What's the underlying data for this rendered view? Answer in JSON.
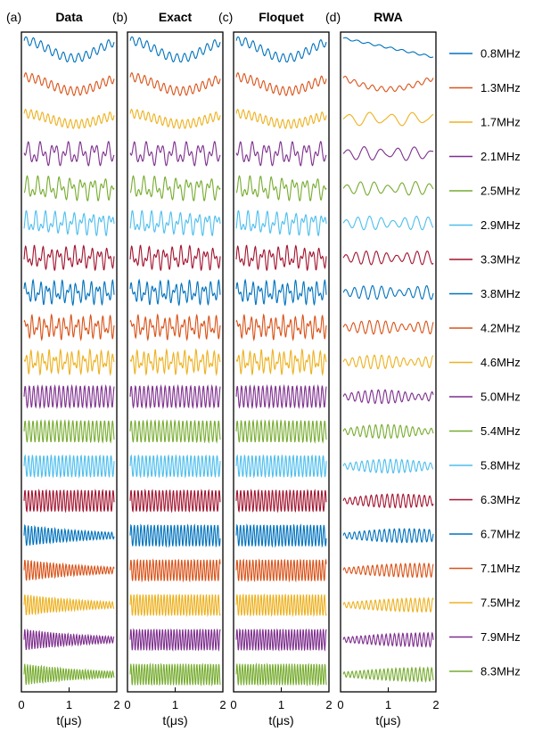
{
  "chart_data": {
    "type": "line",
    "xlabel": "t(μs)",
    "x_ticks": [
      "0",
      "1",
      "2"
    ],
    "xlim": [
      0,
      2
    ],
    "panels": [
      {
        "label": "(a)",
        "title": "Data"
      },
      {
        "label": "(b)",
        "title": "Exact"
      },
      {
        "label": "(c)",
        "title": "Floquet"
      },
      {
        "label": "(d)",
        "title": "RWA"
      }
    ],
    "series": [
      {
        "name": "0.8MHz",
        "color": "#0072BD"
      },
      {
        "name": "1.3MHz",
        "color": "#D95319"
      },
      {
        "name": "1.7MHz",
        "color": "#EDB120"
      },
      {
        "name": "2.1MHz",
        "color": "#7E2F8E"
      },
      {
        "name": "2.5MHz",
        "color": "#77AC30"
      },
      {
        "name": "2.9MHz",
        "color": "#4DBEEE"
      },
      {
        "name": "3.3MHz",
        "color": "#A2142F"
      },
      {
        "name": "3.8MHz",
        "color": "#0072BD"
      },
      {
        "name": "4.2MHz",
        "color": "#D95319"
      },
      {
        "name": "4.6MHz",
        "color": "#EDB120"
      },
      {
        "name": "5.0MHz",
        "color": "#7E2F8E"
      },
      {
        "name": "5.4MHz",
        "color": "#77AC30"
      },
      {
        "name": "5.8MHz",
        "color": "#4DBEEE"
      },
      {
        "name": "6.3MHz",
        "color": "#A2142F"
      },
      {
        "name": "6.7MHz",
        "color": "#0072BD"
      },
      {
        "name": "7.1MHz",
        "color": "#D95319"
      },
      {
        "name": "7.5MHz",
        "color": "#EDB120"
      },
      {
        "name": "7.9MHz",
        "color": "#7E2F8E"
      },
      {
        "name": "8.3MHz",
        "color": "#77AC30"
      }
    ]
  }
}
